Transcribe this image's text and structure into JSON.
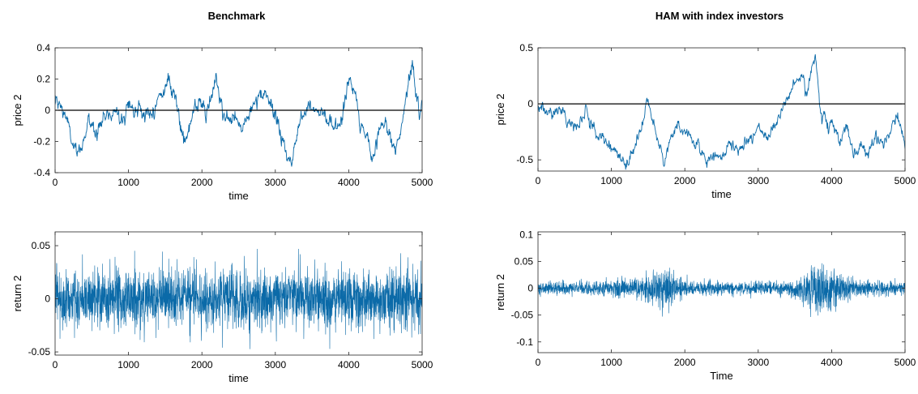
{
  "figure": {
    "title_left": "Benchmark",
    "title_right": "HAM with index investors"
  },
  "chart_data": [
    {
      "type": "line",
      "title": "Benchmark",
      "xlabel": "time",
      "ylabel": "price 2",
      "xlim": [
        0,
        5000
      ],
      "ylim": [
        -0.4,
        0.4
      ],
      "xticks": [
        "0",
        "1000",
        "2000",
        "3000",
        "4000",
        "5000"
      ],
      "yticks": [
        "-0.4",
        "-0.2",
        "0",
        "0.2",
        "0.4"
      ],
      "zero_line": true,
      "line_color": "#0b6aa8",
      "anchors": [
        [
          0,
          0.05
        ],
        [
          80,
          0.02
        ],
        [
          150,
          -0.04
        ],
        [
          230,
          -0.2
        ],
        [
          300,
          -0.31
        ],
        [
          380,
          -0.2
        ],
        [
          450,
          -0.08
        ],
        [
          550,
          -0.12
        ],
        [
          650,
          -0.05
        ],
        [
          750,
          -0.03
        ],
        [
          850,
          0.02
        ],
        [
          950,
          -0.08
        ],
        [
          1000,
          0.08
        ],
        [
          1080,
          -0.02
        ],
        [
          1150,
          0.03
        ],
        [
          1250,
          -0.05
        ],
        [
          1350,
          0.02
        ],
        [
          1450,
          0.1
        ],
        [
          1530,
          0.18
        ],
        [
          1600,
          0.15
        ],
        [
          1700,
          -0.05
        ],
        [
          1780,
          -0.2
        ],
        [
          1850,
          -0.08
        ],
        [
          1950,
          0.05
        ],
        [
          2050,
          -0.02
        ],
        [
          2150,
          0.08
        ],
        [
          2200,
          0.2
        ],
        [
          2260,
          0.05
        ],
        [
          2350,
          -0.08
        ],
        [
          2450,
          -0.05
        ],
        [
          2550,
          -0.12
        ],
        [
          2650,
          0.0
        ],
        [
          2750,
          0.05
        ],
        [
          2850,
          0.1
        ],
        [
          2950,
          0.02
        ],
        [
          3050,
          -0.1
        ],
        [
          3150,
          -0.28
        ],
        [
          3200,
          -0.35
        ],
        [
          3280,
          -0.2
        ],
        [
          3350,
          -0.05
        ],
        [
          3450,
          0.05
        ],
        [
          3550,
          0.02
        ],
        [
          3650,
          -0.02
        ],
        [
          3750,
          -0.08
        ],
        [
          3850,
          -0.12
        ],
        [
          3950,
          0.05
        ],
        [
          4020,
          0.23
        ],
        [
          4080,
          0.1
        ],
        [
          4150,
          -0.05
        ],
        [
          4250,
          -0.2
        ],
        [
          4320,
          -0.32
        ],
        [
          4400,
          -0.15
        ],
        [
          4480,
          -0.05
        ],
        [
          4550,
          -0.12
        ],
        [
          4650,
          -0.28
        ],
        [
          4720,
          -0.08
        ],
        [
          4800,
          0.15
        ],
        [
          4860,
          0.28
        ],
        [
          4920,
          0.12
        ],
        [
          4960,
          -0.05
        ],
        [
          5000,
          0.03
        ]
      ]
    },
    {
      "type": "line",
      "title": "HAM with index investors",
      "xlabel": "time",
      "ylabel": "price 2",
      "xlim": [
        0,
        5000
      ],
      "ylim": [
        -0.6,
        0.5
      ],
      "xticks": [
        "0",
        "1000",
        "2000",
        "3000",
        "4000",
        "5000"
      ],
      "yticks": [
        "-0.5",
        "0",
        "0.5"
      ],
      "zero_line": true,
      "line_color": "#0b6aa8",
      "anchors": [
        [
          0,
          -0.02
        ],
        [
          100,
          -0.05
        ],
        [
          200,
          -0.1
        ],
        [
          300,
          -0.03
        ],
        [
          400,
          -0.15
        ],
        [
          500,
          -0.2
        ],
        [
          600,
          -0.12
        ],
        [
          650,
          -0.05
        ],
        [
          700,
          -0.15
        ],
        [
          800,
          -0.25
        ],
        [
          900,
          -0.32
        ],
        [
          1000,
          -0.4
        ],
        [
          1100,
          -0.45
        ],
        [
          1200,
          -0.55
        ],
        [
          1300,
          -0.45
        ],
        [
          1400,
          -0.2
        ],
        [
          1500,
          0.02
        ],
        [
          1560,
          -0.15
        ],
        [
          1650,
          -0.35
        ],
        [
          1720,
          -0.55
        ],
        [
          1800,
          -0.3
        ],
        [
          1850,
          -0.25
        ],
        [
          1900,
          -0.2
        ],
        [
          2000,
          -0.25
        ],
        [
          2100,
          -0.3
        ],
        [
          2200,
          -0.4
        ],
        [
          2300,
          -0.5
        ],
        [
          2400,
          -0.45
        ],
        [
          2500,
          -0.5
        ],
        [
          2600,
          -0.35
        ],
        [
          2700,
          -0.42
        ],
        [
          2800,
          -0.38
        ],
        [
          2900,
          -0.3
        ],
        [
          3000,
          -0.2
        ],
        [
          3100,
          -0.32
        ],
        [
          3200,
          -0.2
        ],
        [
          3300,
          -0.1
        ],
        [
          3400,
          0.05
        ],
        [
          3500,
          0.2
        ],
        [
          3600,
          0.25
        ],
        [
          3660,
          0.05
        ],
        [
          3720,
          0.3
        ],
        [
          3780,
          0.42
        ],
        [
          3820,
          0.15
        ],
        [
          3870,
          -0.15
        ],
        [
          3900,
          -0.05
        ],
        [
          3950,
          -0.25
        ],
        [
          4000,
          -0.15
        ],
        [
          4050,
          -0.25
        ],
        [
          4100,
          -0.3
        ],
        [
          4200,
          -0.2
        ],
        [
          4300,
          -0.45
        ],
        [
          4400,
          -0.38
        ],
        [
          4500,
          -0.45
        ],
        [
          4600,
          -0.3
        ],
        [
          4700,
          -0.35
        ],
        [
          4800,
          -0.22
        ],
        [
          4900,
          -0.12
        ],
        [
          4960,
          -0.25
        ],
        [
          5000,
          -0.35
        ]
      ]
    },
    {
      "type": "line",
      "title": "",
      "xlabel": "time",
      "ylabel": "return 2",
      "xlim": [
        0,
        5000
      ],
      "ylim": [
        -0.053,
        0.063
      ],
      "xticks": [
        "0",
        "1000",
        "2000",
        "3000",
        "4000",
        "5000"
      ],
      "yticks": [
        "-0.05",
        "0",
        "0.05"
      ],
      "zero_line": false,
      "line_color": "#0b6aa8",
      "volatility": [
        [
          0,
          0.014
        ],
        [
          5000,
          0.014
        ]
      ]
    },
    {
      "type": "line",
      "title": "",
      "xlabel": "Time",
      "ylabel": "return 2",
      "xlim": [
        0,
        5000
      ],
      "ylim": [
        -0.12,
        0.105
      ],
      "xticks": [
        "0",
        "1000",
        "2000",
        "3000",
        "4000",
        "5000"
      ],
      "yticks": [
        "-0.1",
        "-0.05",
        "0",
        "0.05",
        "0.1"
      ],
      "zero_line": false,
      "line_color": "#0b6aa8",
      "volatility": [
        [
          0,
          0.006
        ],
        [
          600,
          0.006
        ],
        [
          1000,
          0.008
        ],
        [
          1400,
          0.009
        ],
        [
          1600,
          0.016
        ],
        [
          1750,
          0.022
        ],
        [
          1900,
          0.012
        ],
        [
          2100,
          0.007
        ],
        [
          2600,
          0.006
        ],
        [
          3000,
          0.006
        ],
        [
          3400,
          0.007
        ],
        [
          3600,
          0.014
        ],
        [
          3800,
          0.026
        ],
        [
          3950,
          0.022
        ],
        [
          4150,
          0.012
        ],
        [
          4400,
          0.007
        ],
        [
          5000,
          0.006
        ]
      ]
    }
  ]
}
